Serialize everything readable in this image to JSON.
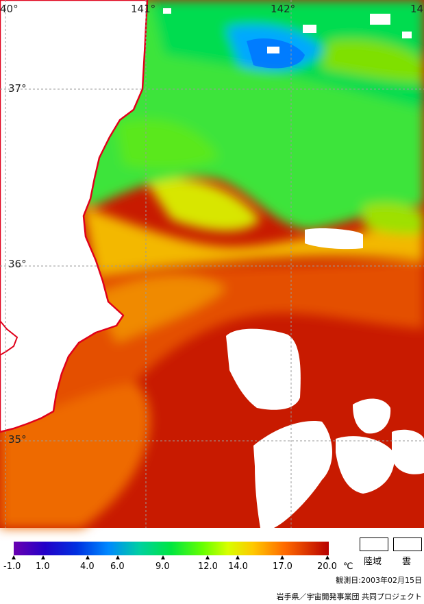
{
  "map": {
    "longitude_labels": [
      "40°",
      "141°",
      "142°",
      "14"
    ],
    "latitude_labels": [
      "37°",
      "36°",
      "35°"
    ]
  },
  "colorbar": {
    "ticks": [
      "-1.0",
      "1.0",
      "4.0",
      "6.0",
      "9.0",
      "12.0",
      "14.0",
      "17.0",
      "20.0"
    ],
    "unit": "℃",
    "colors": [
      "#6a00b0",
      "#0000c8",
      "#0066ff",
      "#00c8ff",
      "#00e67a",
      "#33ff00",
      "#b6ff00",
      "#ffd700",
      "#ff8c00",
      "#ff3c00",
      "#c80000"
    ]
  },
  "legend": {
    "land_label": "陸域",
    "cloud_label": "雲"
  },
  "footer": {
    "date": "観測日:2003年02月15日",
    "credit": "岩手県／宇宙開発事業団 共同プロジェクト"
  }
}
